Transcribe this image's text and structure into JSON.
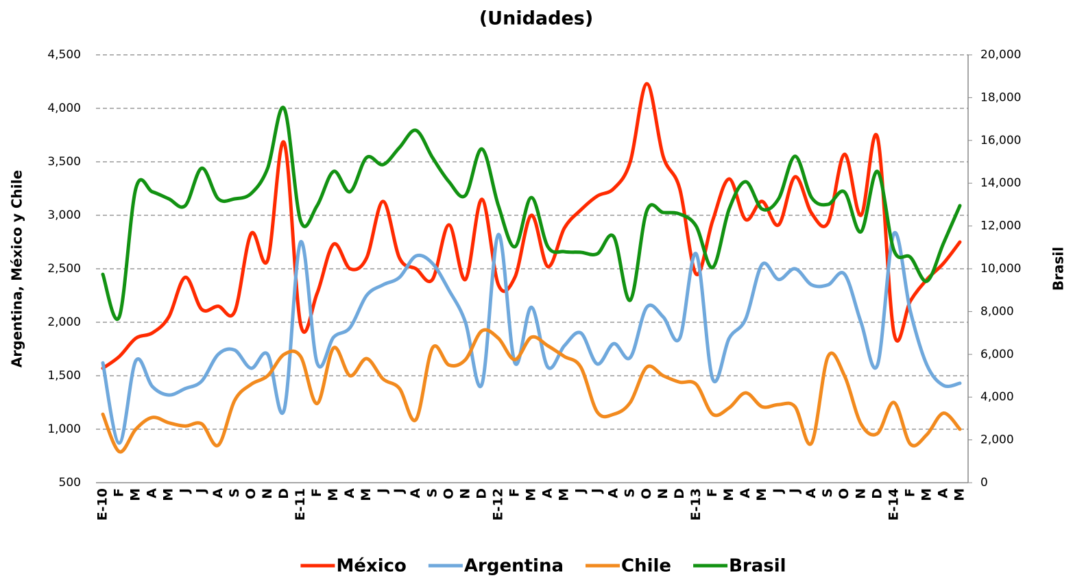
{
  "chart_data": {
    "type": "line",
    "title": "(Unidades)",
    "y_label": "Argentina, México y Chile",
    "y2_label": "Brasil",
    "categories": [
      "E-10",
      "F",
      "M",
      "A",
      "M",
      "J",
      "J",
      "A",
      "S",
      "O",
      "N",
      "D",
      "E-11",
      "F",
      "M",
      "A",
      "M",
      "J",
      "J",
      "A",
      "S",
      "O",
      "N",
      "D",
      "E-12",
      "F",
      "M",
      "A",
      "M",
      "J",
      "J",
      "A",
      "S",
      "O",
      "N",
      "D",
      "E-13",
      "F",
      "M",
      "A",
      "M",
      "J",
      "J",
      "A",
      "S",
      "O",
      "N",
      "D",
      "E-14",
      "F",
      "M",
      "A",
      "M"
    ],
    "ylim": [
      500,
      4500
    ],
    "yticks": [
      {
        "value": 500,
        "label": "500"
      },
      {
        "value": 1000,
        "label": "1,000"
      },
      {
        "value": 1500,
        "label": "1,500"
      },
      {
        "value": 2000,
        "label": "2,000"
      },
      {
        "value": 2500,
        "label": "2,500"
      },
      {
        "value": 3000,
        "label": "3,000"
      },
      {
        "value": 3500,
        "label": "3,500"
      },
      {
        "value": 4000,
        "label": "4,000"
      },
      {
        "value": 4500,
        "label": "4,500"
      }
    ],
    "y2lim": [
      0,
      20000
    ],
    "y2ticks": [
      0,
      {
        "value": 2000,
        "label": "2,000"
      },
      {
        "value": 4000,
        "label": "4,000"
      },
      {
        "value": 6000,
        "label": "6,000"
      },
      {
        "value": 8000,
        "label": "8,000"
      },
      {
        "value": 10000,
        "label": "10,000"
      },
      {
        "value": 12000,
        "label": "12,000"
      },
      {
        "value": 14000,
        "label": "14,000"
      },
      {
        "value": 16000,
        "label": "16,000"
      },
      {
        "value": 18000,
        "label": "18,000"
      },
      {
        "value": 20000,
        "label": "20,000"
      }
    ],
    "grid": true,
    "legend": "bottom",
    "series": [
      {
        "name": "México",
        "color": "#ff2a00",
        "values": [
          1570,
          1680,
          1850,
          1900,
          2050,
          2420,
          2120,
          2150,
          2100,
          2830,
          2580,
          3680,
          1980,
          2270,
          2730,
          2500,
          2600,
          3130,
          2600,
          2500,
          2400,
          2910,
          2400,
          3150,
          2350,
          2420,
          3000,
          2520,
          2880,
          3050,
          3180,
          3250,
          3500,
          4230,
          3550,
          3250,
          2450,
          2950,
          3340,
          2960,
          3130,
          2910,
          3360,
          3020,
          2930,
          3570,
          3000,
          3730,
          1900,
          2200,
          2400,
          2550,
          2750
        ]
      },
      {
        "name": "Argentina",
        "color": "#6fa8dc",
        "values": [
          1620,
          870,
          1640,
          1400,
          1320,
          1380,
          1450,
          1700,
          1740,
          1570,
          1700,
          1180,
          2750,
          1620,
          1860,
          1950,
          2250,
          2350,
          2420,
          2620,
          2550,
          2300,
          2000,
          1420,
          2820,
          1620,
          2140,
          1580,
          1780,
          1900,
          1610,
          1800,
          1670,
          2140,
          2050,
          1850,
          2640,
          1470,
          1850,
          2030,
          2540,
          2400,
          2500,
          2350,
          2350,
          2450,
          2000,
          1600,
          2830,
          2100,
          1600,
          1410,
          1430
        ]
      },
      {
        "name": "Chile",
        "color": "#f28a1e",
        "values": [
          1140,
          790,
          1000,
          1110,
          1060,
          1030,
          1050,
          850,
          1270,
          1420,
          1500,
          1700,
          1680,
          1240,
          1760,
          1500,
          1660,
          1470,
          1380,
          1090,
          1760,
          1600,
          1650,
          1920,
          1850,
          1650,
          1860,
          1780,
          1680,
          1580,
          1160,
          1140,
          1250,
          1580,
          1500,
          1440,
          1420,
          1140,
          1200,
          1340,
          1210,
          1230,
          1210,
          870,
          1680,
          1500,
          1050,
          960,
          1250,
          860,
          950,
          1150,
          1000
        ]
      },
      {
        "name": "Brasil",
        "color": "#129212",
        "axis": "y2",
        "values": [
          9740,
          7760,
          13750,
          13600,
          13270,
          12950,
          14700,
          13270,
          13270,
          13520,
          14700,
          17500,
          12240,
          12950,
          14550,
          13600,
          15200,
          14870,
          15670,
          16470,
          15200,
          14070,
          13430,
          15600,
          12950,
          11030,
          13330,
          11030,
          10800,
          10770,
          10700,
          11500,
          8530,
          12700,
          12630,
          12560,
          11990,
          10060,
          12790,
          14070,
          12790,
          13270,
          15260,
          13330,
          13010,
          13590,
          11730,
          14550,
          10860,
          10540,
          9420,
          11180,
          12950
        ]
      }
    ]
  }
}
